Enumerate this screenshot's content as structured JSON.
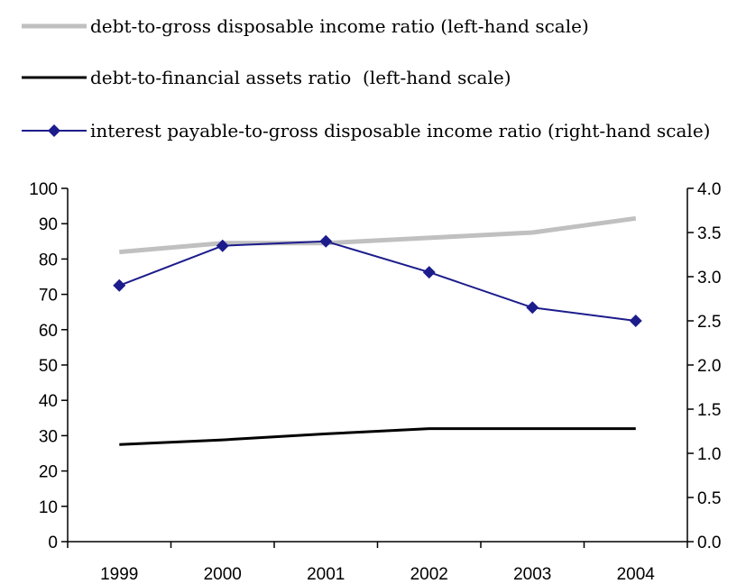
{
  "chart_data": {
    "type": "line",
    "title": "",
    "xlabel": "",
    "ylabel_left": "",
    "ylabel_right": "",
    "categories": [
      "1999",
      "2000",
      "2001",
      "2002",
      "2003",
      "2004"
    ],
    "y_left": {
      "min": 0,
      "max": 100,
      "ticks": [
        "0",
        "10",
        "20",
        "30",
        "40",
        "50",
        "60",
        "70",
        "80",
        "90",
        "100"
      ]
    },
    "y_right": {
      "min": 0,
      "max": 4.0,
      "ticks": [
        "0.0",
        "0.5",
        "1.0",
        "1.5",
        "2.0",
        "2.5",
        "3.0",
        "3.5",
        "4.0"
      ]
    },
    "grid": false,
    "legend_position": "top",
    "series": [
      {
        "name": "debt-to-gross disposable income ratio (left-hand scale)",
        "axis": "left",
        "color": "#c0c0c0",
        "marker": "none",
        "values": [
          82,
          84.5,
          84.5,
          86,
          87.5,
          91.5
        ]
      },
      {
        "name": "debt-to-financial assets ratio  (left-hand scale)",
        "axis": "left",
        "color": "#000000",
        "marker": "none",
        "values": [
          27.5,
          28.8,
          30.5,
          32,
          32,
          32
        ]
      },
      {
        "name": "interest payable-to-gross disposable income ratio (right-hand scale)",
        "axis": "right",
        "color": "#1c1c8c",
        "marker": "diamond",
        "values": [
          2.9,
          3.35,
          3.4,
          3.05,
          2.65,
          2.5
        ]
      }
    ]
  }
}
